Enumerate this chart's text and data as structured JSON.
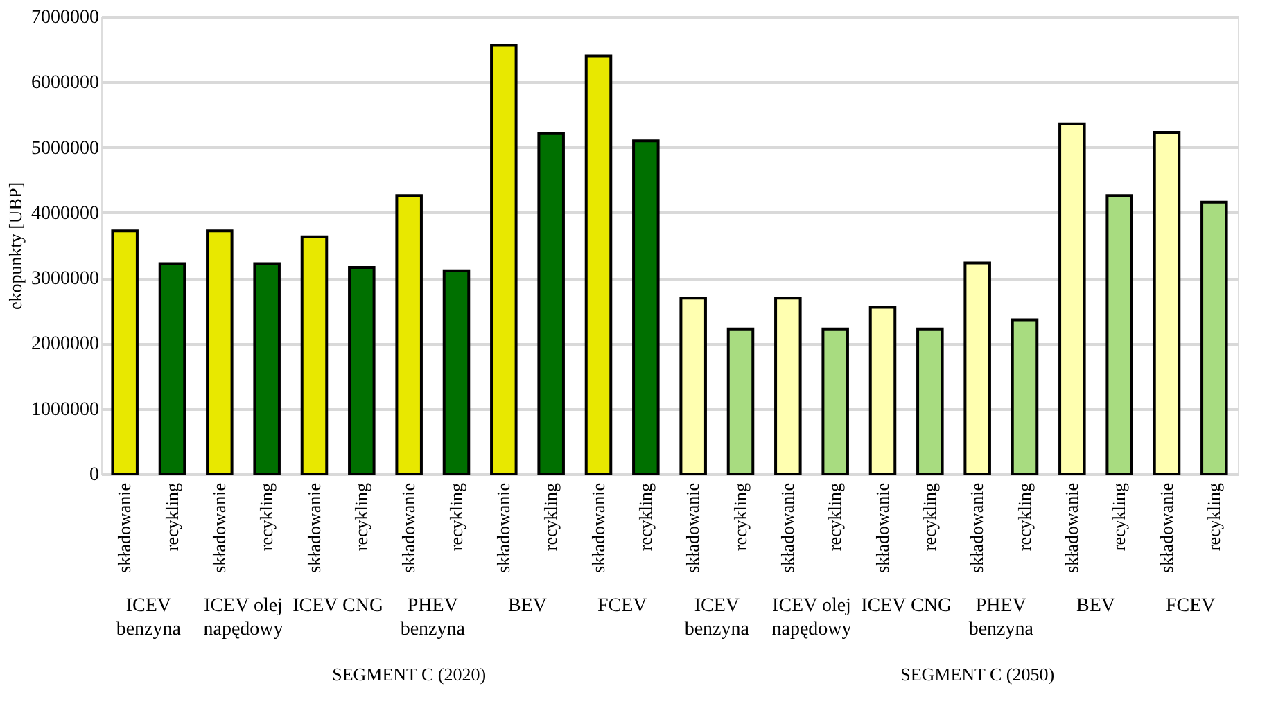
{
  "chart_data": {
    "type": "bar",
    "ylabel": "ekopunkty [UBP]",
    "categories": [
      "składowanie",
      "recykling",
      "składowanie",
      "recykling",
      "składowanie",
      "recykling",
      "składowanie",
      "recykling",
      "składowanie",
      "recykling",
      "składowanie",
      "recykling",
      "składowanie",
      "recykling",
      "składowanie",
      "recykling",
      "składowanie",
      "recykling",
      "składowanie",
      "recykling",
      "składowanie",
      "recykling",
      "składowanie",
      "recykling"
    ],
    "values": [
      3720000,
      3220000,
      3720000,
      3220000,
      3630000,
      3160000,
      4260000,
      3110000,
      6560000,
      5210000,
      6400000,
      5100000,
      2690000,
      2220000,
      2690000,
      2220000,
      2550000,
      2220000,
      3230000,
      2360000,
      5360000,
      4260000,
      5230000,
      4160000
    ],
    "colors": [
      "#e8e800",
      "#007000",
      "#e8e800",
      "#007000",
      "#e8e800",
      "#007000",
      "#e8e800",
      "#007000",
      "#e8e800",
      "#007000",
      "#e8e800",
      "#007000",
      "#ffffb0",
      "#a8dc80",
      "#ffffb0",
      "#a8dc80",
      "#ffffb0",
      "#a8dc80",
      "#ffffb0",
      "#a8dc80",
      "#ffffb0",
      "#a8dc80",
      "#ffffb0",
      "#a8dc80"
    ],
    "ylim": [
      0,
      7000000
    ],
    "yticks": [
      0,
      1000000,
      2000000,
      3000000,
      4000000,
      5000000,
      6000000,
      7000000
    ],
    "grid": "y",
    "annotations": [
      "ICEV benzyna",
      "ICEV olej napędowy",
      "ICEV CNG",
      "PHEV benzyna",
      "BEV",
      "FCEV",
      "ICEV benzyna",
      "ICEV olej napędowy",
      "ICEV CNG",
      "PHEV benzyna",
      "BEV",
      "FCEV",
      "SEGMENT C (2020)",
      "SEGMENT C (2050)"
    ]
  }
}
